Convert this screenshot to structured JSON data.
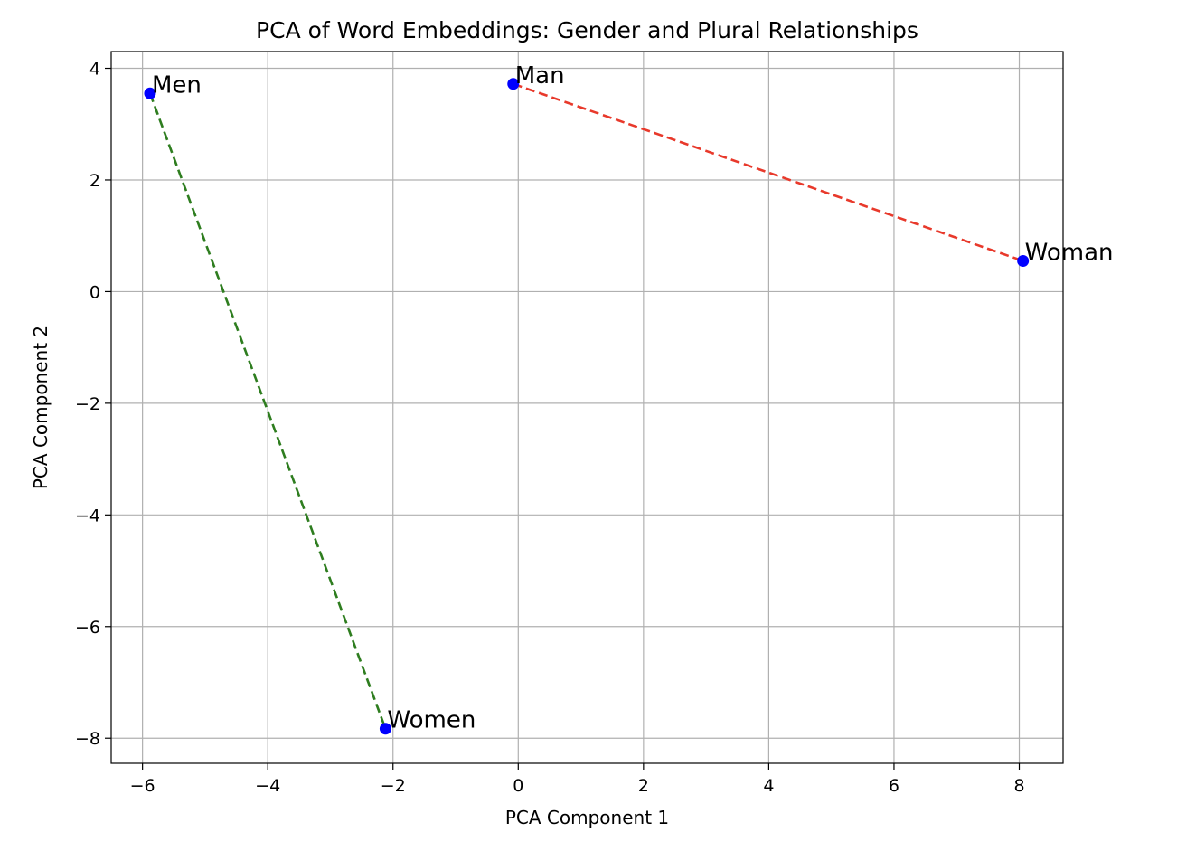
{
  "chart_data": {
    "type": "scatter",
    "title": "PCA of Word Embeddings: Gender and Plural Relationships",
    "xlabel": "PCA Component 1",
    "ylabel": "PCA Component 2",
    "xlim": [
      -6.5,
      8.7
    ],
    "ylim": [
      -8.45,
      4.3
    ],
    "xticks": [
      -6,
      -4,
      -2,
      0,
      2,
      4,
      6,
      8
    ],
    "yticks": [
      -8,
      -6,
      -4,
      -2,
      0,
      2,
      4
    ],
    "xtick_labels": [
      "−6",
      "−4",
      "−2",
      "0",
      "2",
      "4",
      "6",
      "8"
    ],
    "ytick_labels": [
      "−8",
      "−6",
      "−4",
      "−2",
      "0",
      "2",
      "4"
    ],
    "grid": true,
    "point_color": "#0000ff",
    "points": [
      {
        "label": "Man",
        "x": -0.08,
        "y": 3.72
      },
      {
        "label": "Woman",
        "x": 8.06,
        "y": 0.55
      },
      {
        "label": "Men",
        "x": -5.88,
        "y": 3.55
      },
      {
        "label": "Women",
        "x": -2.12,
        "y": -7.83
      }
    ],
    "lines": [
      {
        "from": "Man",
        "to": "Woman",
        "color": "#e8392b",
        "style": "dashed"
      },
      {
        "from": "Men",
        "to": "Women",
        "color": "#2e7d1f",
        "style": "dashed"
      }
    ]
  }
}
